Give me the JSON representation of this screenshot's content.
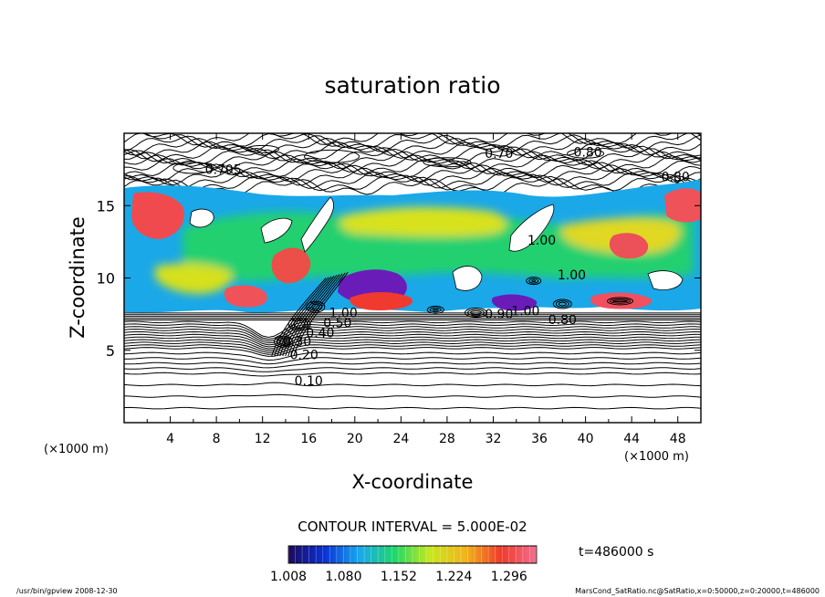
{
  "chart_data": {
    "type": "heatmap",
    "title": "saturation ratio",
    "xlabel": "X-coordinate",
    "ylabel": "Z-coordinate",
    "x_unit": "(×1000 m)",
    "z_unit": "(×1000 m)",
    "xlim": [
      0,
      50
    ],
    "ylim": [
      0,
      20
    ],
    "x_ticks": [
      "4",
      "8",
      "12",
      "16",
      "20",
      "24",
      "28",
      "32",
      "36",
      "40",
      "44",
      "48"
    ],
    "y_ticks": [
      "5",
      "10",
      "15"
    ],
    "contour_interval": "CONTOUR INTERVAL = 5.000E-02",
    "time_label": "t=486000 s",
    "colorbar": {
      "min": 1.008,
      "max": 1.332,
      "tick_labels": [
        "1.008",
        "1.080",
        "1.152",
        "1.224",
        "1.296"
      ],
      "colors": [
        "#1c0a5a",
        "#0a2fd6",
        "#18a8f0",
        "#1ed86a",
        "#c8e81c",
        "#f2b41a",
        "#f03a2a",
        "#f27090"
      ]
    },
    "contour_labels": [
      {
        "text": "0.10",
        "x": 16.0,
        "y": 2.6
      },
      {
        "text": "0.20",
        "x": 15.6,
        "y": 4.4
      },
      {
        "text": "0.30",
        "x": 15.0,
        "y": 5.3
      },
      {
        "text": "0.40",
        "x": 17.0,
        "y": 5.9
      },
      {
        "text": "0.50",
        "x": 18.5,
        "y": 6.6
      },
      {
        "text": "1.00",
        "x": 19.0,
        "y": 7.3
      },
      {
        "text": "1.00",
        "x": 34.8,
        "y": 7.4
      },
      {
        "text": "1.00",
        "x": 38.8,
        "y": 9.9
      },
      {
        "text": "1.00",
        "x": 36.2,
        "y": 12.3
      },
      {
        "text": "0.90",
        "x": 32.5,
        "y": 7.2
      },
      {
        "text": "0.80",
        "x": 38.0,
        "y": 6.8
      },
      {
        "text": "0.705",
        "x": 8.6,
        "y": 17.2
      },
      {
        "text": "0.80",
        "x": 40.2,
        "y": 18.4
      },
      {
        "text": "0.80",
        "x": 47.8,
        "y": 16.7
      },
      {
        "text": "0.70",
        "x": 32.5,
        "y": 18.3
      }
    ],
    "footer_left": "/usr/bin/gpview  2008-12-30",
    "footer_right": "MarsCond_SatRatio.nc@SatRatio,x=0:50000,z=0:20000,t=486000"
  }
}
